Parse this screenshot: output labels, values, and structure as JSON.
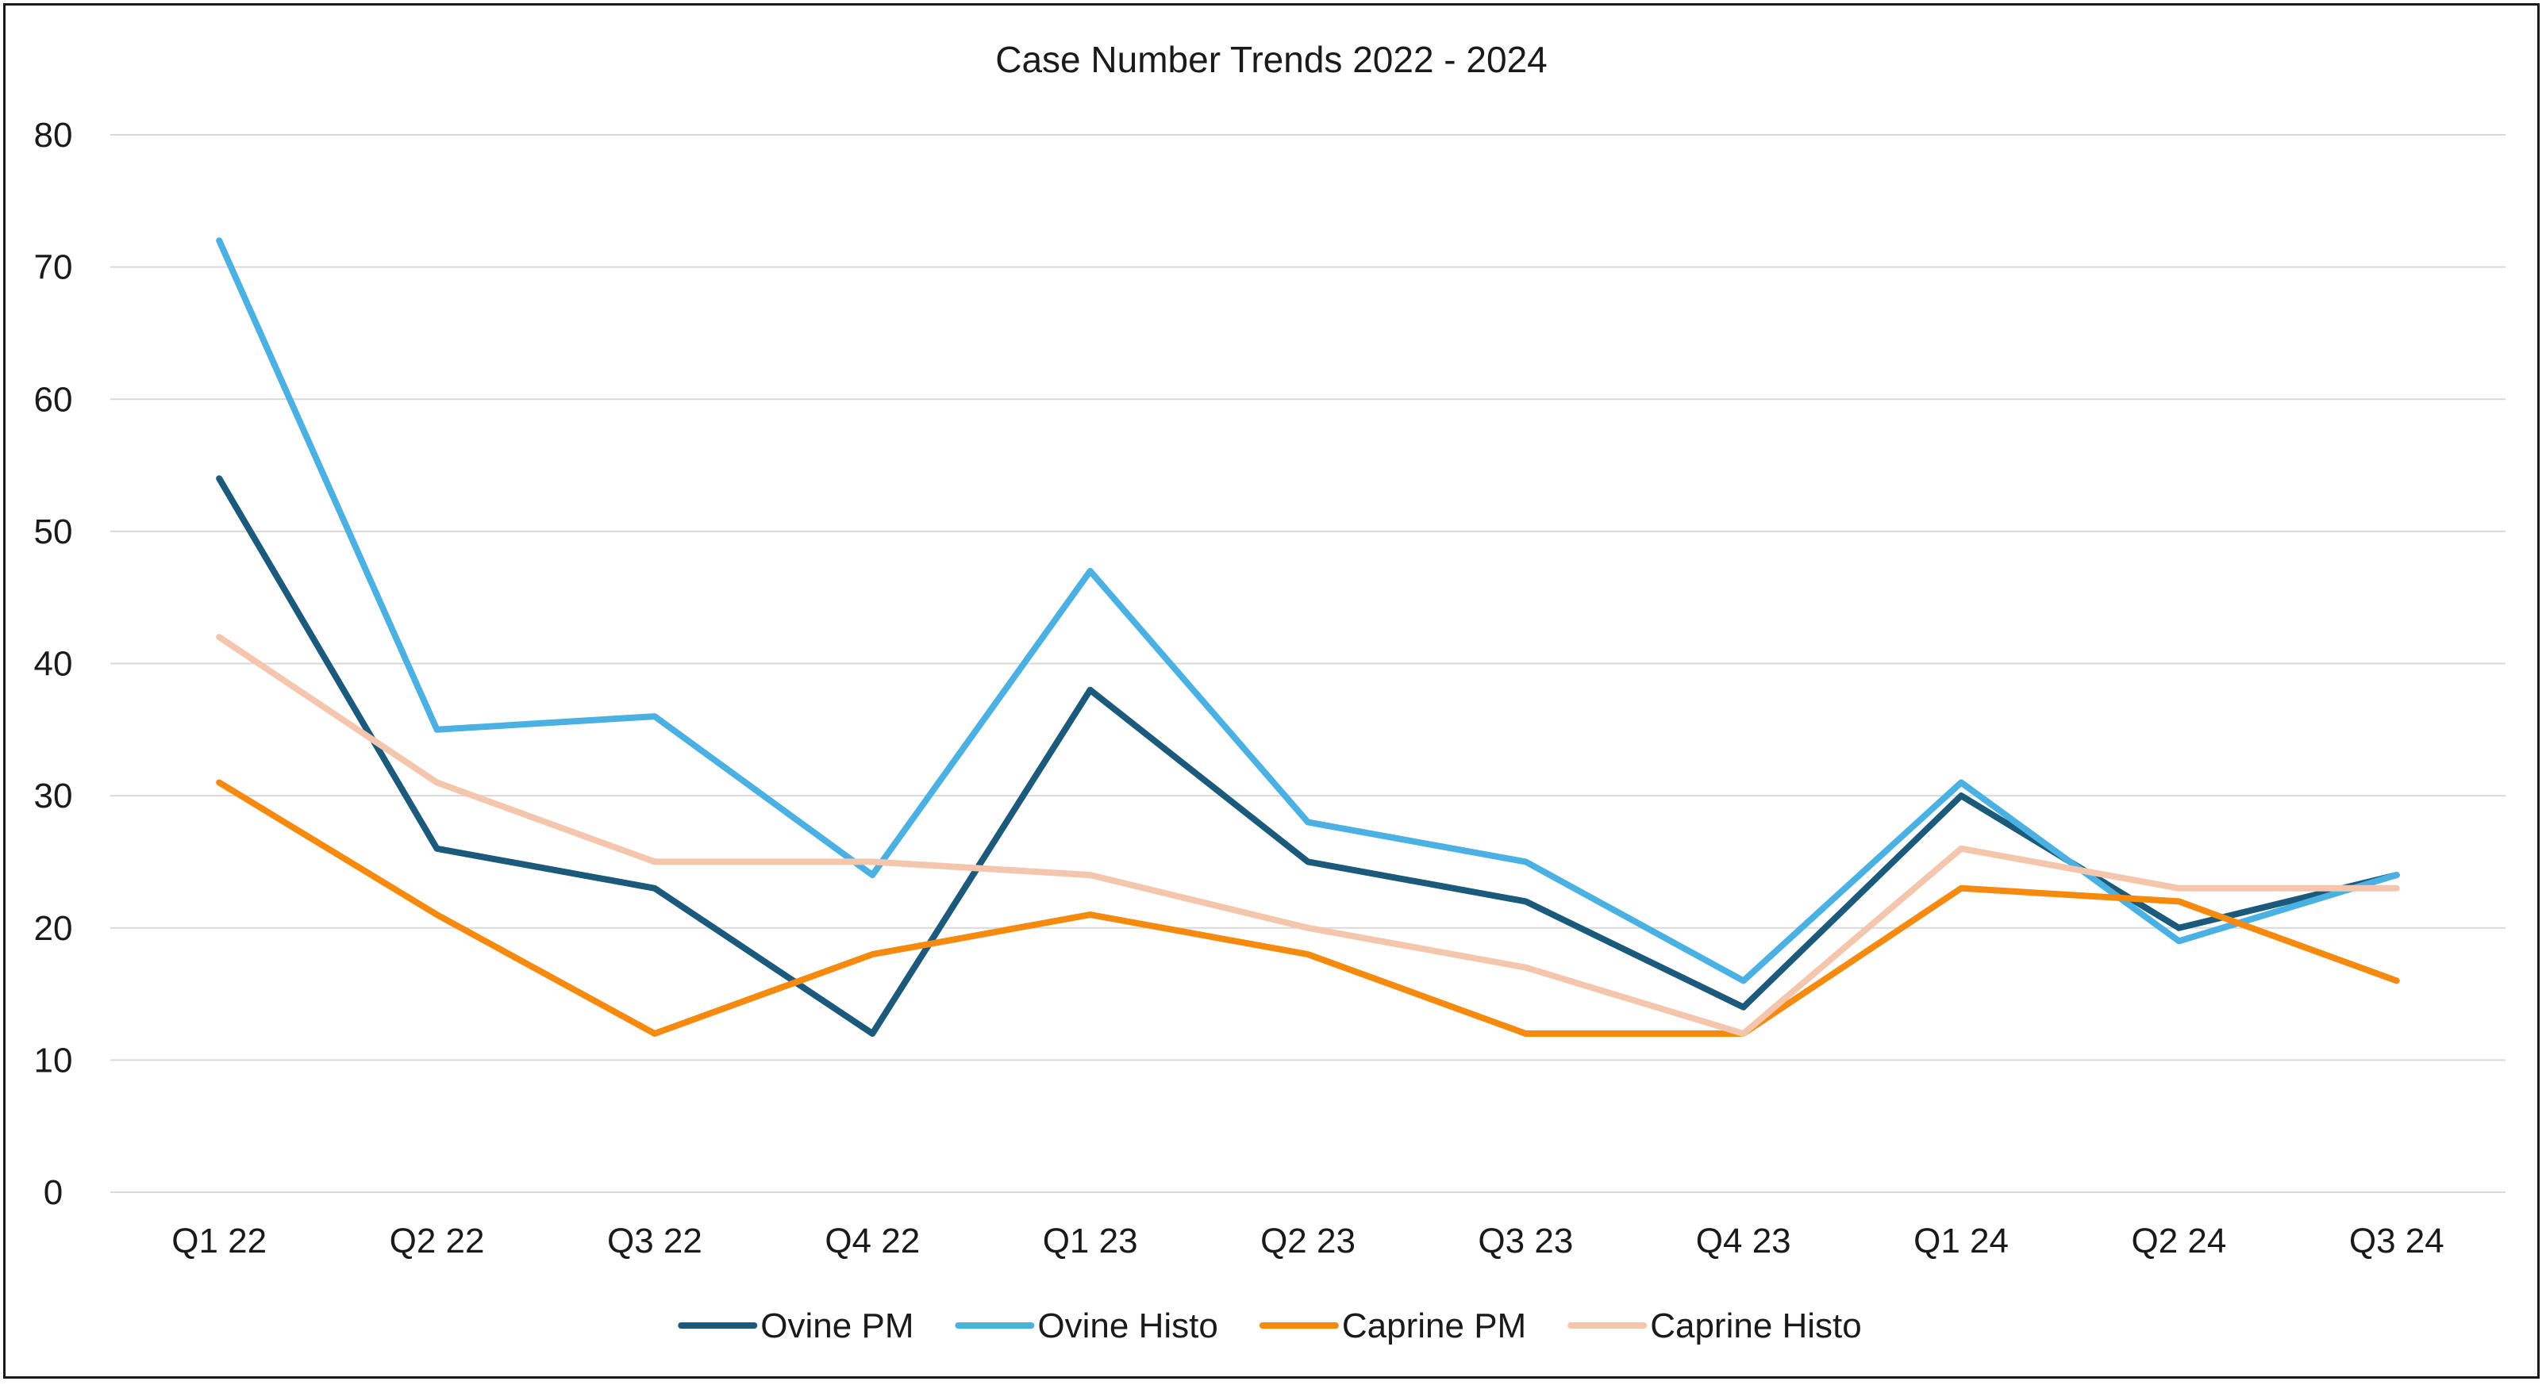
{
  "chart_data": {
    "type": "line",
    "title": "Case Number Trends 2022 - 2024",
    "xlabel": "",
    "ylabel": "",
    "categories": [
      "Q1 22",
      "Q2 22",
      "Q3 22",
      "Q4 22",
      "Q1 23",
      "Q2 23",
      "Q3 23",
      "Q4 23",
      "Q1 24",
      "Q2 24",
      "Q3 24"
    ],
    "ylim": [
      0,
      80
    ],
    "yticks": [
      0,
      10,
      20,
      30,
      40,
      50,
      60,
      70,
      80
    ],
    "grid": true,
    "legend_position": "bottom",
    "series": [
      {
        "name": "Ovine PM",
        "color": "#1c5a7c",
        "values": [
          54,
          26,
          23,
          12,
          38,
          25,
          22,
          14,
          30,
          20,
          24
        ]
      },
      {
        "name": "Ovine Histo",
        "color": "#4bb0e2",
        "values": [
          72,
          35,
          36,
          24,
          47,
          28,
          25,
          16,
          31,
          19,
          24
        ]
      },
      {
        "name": "Caprine PM",
        "color": "#f58a0f",
        "values": [
          31,
          21,
          12,
          18,
          21,
          18,
          12,
          12,
          23,
          22,
          16
        ]
      },
      {
        "name": "Caprine Histo",
        "color": "#f5c6ae",
        "values": [
          42,
          31,
          25,
          25,
          24,
          20,
          17,
          12,
          26,
          23,
          23
        ]
      }
    ]
  }
}
